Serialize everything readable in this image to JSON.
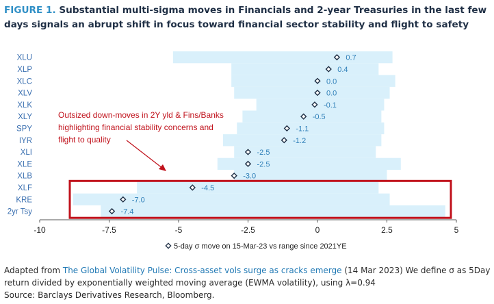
{
  "header": {
    "figure_label": "FIGURE 1.",
    "title": "Substantial multi-sigma moves in Financials and 2-year Treasuries in the last few days signals an abrupt shift in focus toward financial sector stability and flight to safety"
  },
  "chart_data": {
    "type": "bar",
    "categories": [
      "XLU",
      "XLP",
      "XLC",
      "XLV",
      "XLK",
      "XLY",
      "SPY",
      "IYR",
      "XLI",
      "XLE",
      "XLB",
      "XLF",
      "KRE",
      "2yr Tsy"
    ],
    "series": [
      {
        "name": "5-day σ move on 15-Mar-23 vs range since 2021YE",
        "values": [
          0.7,
          0.4,
          0.0,
          0.0,
          -0.1,
          -0.5,
          -1.1,
          -1.2,
          -2.5,
          -2.5,
          -3.0,
          -4.5,
          -7.0,
          -7.4
        ],
        "value_labels": [
          "0.7",
          "0.4",
          "0.0",
          "0.0",
          "-0.1",
          "-0.5",
          "-1.1",
          "-1.2",
          "-2.5",
          "-2.5",
          "-3.0",
          "-4.5",
          "-7.0",
          "-7.4"
        ]
      }
    ],
    "range_low": [
      -5.2,
      -3.1,
      -3.1,
      -3.0,
      -2.2,
      -2.7,
      -2.9,
      -3.4,
      -3.0,
      -3.6,
      -3.0,
      -6.5,
      -8.8,
      -7.8
    ],
    "range_high": [
      2.7,
      2.2,
      2.8,
      2.6,
      2.4,
      2.3,
      2.4,
      2.3,
      2.1,
      3.0,
      2.5,
      2.2,
      2.6,
      4.6
    ],
    "xlim": [
      -10,
      5
    ],
    "xticks": [
      "-10",
      "-7.5",
      "-5",
      "-2.5",
      "0",
      "2.5",
      "5"
    ],
    "xtick_values": [
      -10,
      -7.5,
      -5,
      -2.5,
      0,
      2.5,
      5
    ],
    "legend_label": "5-day σ move on 15-Mar-23 vs range since 2021YE",
    "legend_position": "bottom",
    "annotation": {
      "lines": [
        "Outsized down-moves in 2Y yld & Fins/Banks",
        "highlighting financial stability concerns and",
        "flight to quality"
      ],
      "highlight_categories": [
        "XLF",
        "KRE",
        "2yr Tsy"
      ]
    },
    "colors": {
      "range_bar": "#d9f0fb",
      "marker": "#1f2f45",
      "value_label": "#2f7fb8",
      "highlight_box": "#c0111b",
      "arrow": "#c0111b",
      "annotation_text": "#c0111b",
      "axis": "#555555"
    },
    "grid": false
  },
  "footer": {
    "source_prefix": "Adapted from ",
    "source_link": "The Global Volatility Pulse: Cross-asset vols surge as cracks emerge",
    "source_suffix": " (14 Mar 2023) We define σ as 5Day return divided by exponentially weighted moving average (EWMA volatility), using λ=0.94",
    "source_credit": "Source: Barclays Derivatives Research, Bloomberg."
  }
}
